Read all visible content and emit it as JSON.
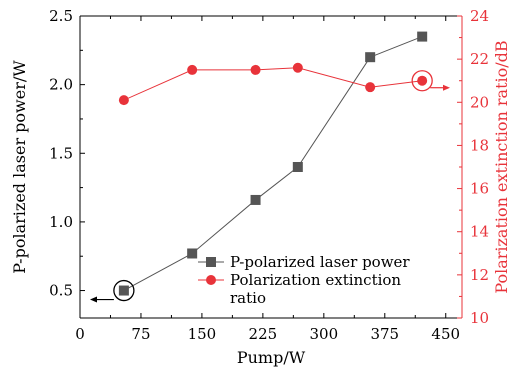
{
  "chart_data": {
    "type": "line",
    "x_axis": {
      "label": "Pump/W",
      "range": [
        0,
        470
      ],
      "ticks": [
        0,
        75,
        150,
        225,
        300,
        375,
        450
      ]
    },
    "y_left": {
      "label": "P-polarized laser power/W",
      "range": [
        0.3,
        2.5
      ],
      "ticks": [
        0.5,
        1.0,
        1.5,
        2.0,
        2.5
      ],
      "tick_labels": [
        "0.5",
        "1.0",
        "1.5",
        "2.0",
        "2.5"
      ],
      "color": "#000000"
    },
    "y_right": {
      "label": "Polarization extinction ratio/dB",
      "range": [
        10,
        24
      ],
      "ticks": [
        10,
        12,
        14,
        16,
        18,
        20,
        22,
        24
      ],
      "tick_labels": [
        "10",
        "12",
        "14",
        "16",
        "18",
        "20",
        "22",
        "24"
      ],
      "color": "#e8333a"
    },
    "series": [
      {
        "name": "P-polarized laser power",
        "axis": "left",
        "color": "#555555",
        "marker": "square",
        "x": [
          54,
          138,
          216,
          268,
          357,
          421
        ],
        "y": [
          0.5,
          0.77,
          1.16,
          1.4,
          2.2,
          2.35
        ]
      },
      {
        "name": "Polarization extinction ratio",
        "axis": "right",
        "color": "#e8333a",
        "marker": "circle",
        "x": [
          54,
          138,
          216,
          268,
          357,
          421
        ],
        "y": [
          20.1,
          21.5,
          21.5,
          21.6,
          20.7,
          21.0
        ]
      }
    ],
    "legend": {
      "position": "bottom-right",
      "lines": [
        [
          "P-polarized laser power"
        ],
        [
          "Polarization extinction",
          "ratio"
        ]
      ]
    },
    "annotations": [
      {
        "series": 0,
        "point": 0,
        "arrow": "left"
      },
      {
        "series": 1,
        "point": 5,
        "arrow": "right"
      }
    ],
    "grid": false
  }
}
